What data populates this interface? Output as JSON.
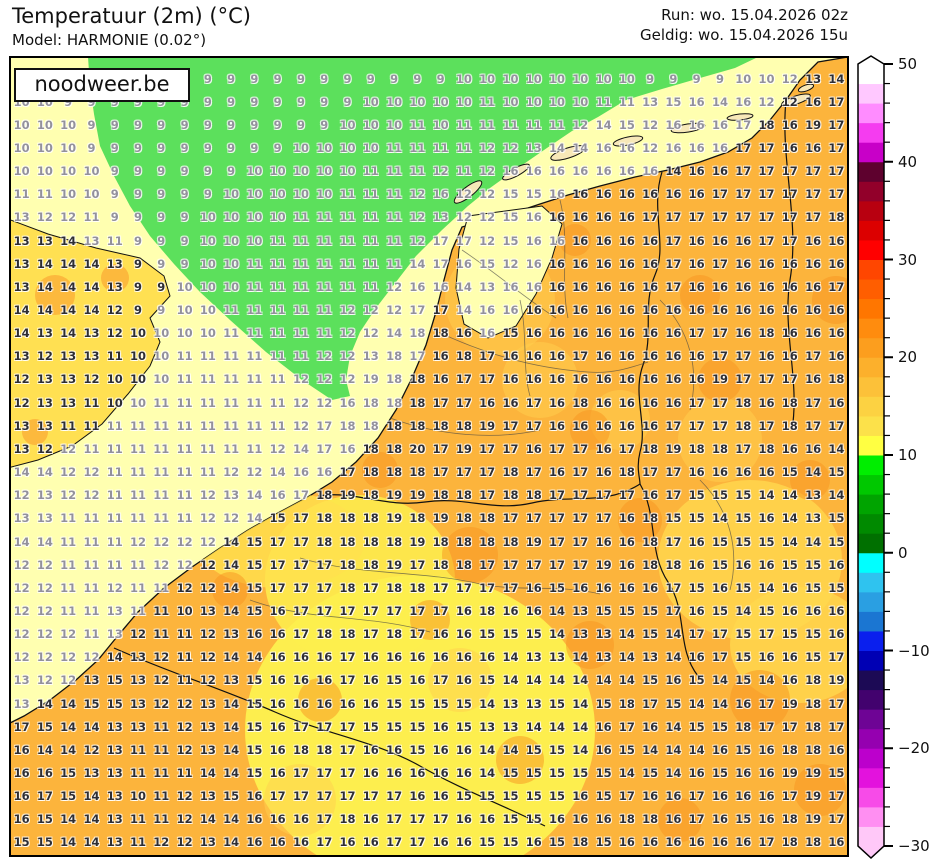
{
  "header": {
    "title": "Temperatuur (2m) (°C)",
    "model": "Model: HARMONIE (0.02°)",
    "run": "Run: wo. 15.04.2026 02z",
    "valid": "Geldig: wo. 15.04.2026 15u"
  },
  "watermark": "noodweer.be",
  "map_colors": {
    "sea_pale": "#ffffb0",
    "sea_green": "#5ce05c",
    "land_orange": "#fcb43c",
    "england_yellow": "#ffe052",
    "france_yellow": "#fdee4e",
    "island_sand": "#f7e8b8",
    "border_line": "#111111"
  },
  "chart_data": {
    "type": "heatmap",
    "title": "Temperatuur (2m) (°C)",
    "model": "HARMONIE (0.02°)",
    "run": "wo. 15.04.2026 02z",
    "valid": "wo. 15.04.2026 15u",
    "unit": "°C",
    "grid_rows": 34,
    "grid_cols": 36,
    "masked_cell_token": ".",
    "values": [
      ". . . . . . . 9 9 9 9 9 9 9 9 9 9 9 9 10 10 10 10 10 10 10 10 9 9 9 9 10 10 12 13 14",
      "10 10 9 9 9 9 9 9 9 9 9 9 9 9 9 10 10 10 10 10 11 10 10 10 10 11 11 13 15 16 14 16 12 12 16 17",
      "10 10 10 9 9 9 9 9 9 9 9 9 9 9 10 10 10 11 10 11 11 11 11 11 12 14 15 12 16 16 16 17 18 16 19 17",
      "10 10 10 9 9 9 9 9 9 9 9 9 10 10 10 10 11 11 11 11 12 12 13 14 14 16 16 12 16 16 16 17 17 16 16 17",
      "10 10 10 10 9 9 9 9 9 9 10 10 10 10 10 11 11 11 12 11 12 16 16 16 16 16 16 16 14 16 16 17 17 17 17 17",
      "11 11 10 10 9 9 9 9 9 10 10 10 10 10 11 11 11 12 16 12 12 15 15 16 16 16 16 16 16 16 17 17 17 17 17 17",
      "13 12 12 11 9 9 9 9 10 10 10 10 11 11 11 11 11 12 13 12 12 15 16 16 16 16 16 17 17 17 17 17 17 17 17 18",
      "13 13 14 13 11 9 9 9 10 10 10 11 11 11 11 11 11 12 17 17 12 15 16 16 16 16 16 16 17 16 16 16 17 17 16 16",
      "13 14 14 14 13 9 9 9 10 10 11 11 11 11 11 11 11 14 17 16 15 12 16 16 16 16 16 16 17 16 17 16 16 16 16 16",
      "13 14 14 14 13 9 9 10 10 10 11 11 11 11 11 11 12 16 16 14 13 16 16 16 16 16 16 16 17 16 16 16 16 16 16 17",
      "14 14 14 14 12 9 9 10 10 11 11 11 11 11 12 12 12 17 17 14 16 16 16 16 16 16 16 16 16 16 16 16 16 16 16 16",
      "14 13 14 13 12 10 10 10 10 11 11 11 11 11 12 12 14 18 18 16 16 15 16 16 16 16 16 16 16 17 17 16 18 16 16 16",
      "13 12 13 13 11 10 10 11 11 11 11 11 11 12 12 13 18 17 16 18 17 16 16 16 17 16 16 16 16 16 17 17 16 16 17 16",
      "12 13 13 12 10 10 10 11 11 11 11 11 12 12 12 19 18 18 16 17 17 16 16 16 16 16 16 16 16 16 19 17 17 17 16 18",
      "12 13 13 11 10 10 11 11 11 11 11 11 12 12 16 18 18 18 17 17 16 16 17 16 18 16 16 16 16 17 17 18 16 18 17 16",
      "13 13 11 11 11 11 11 11 11 11 11 11 12 17 18 18 18 18 18 18 19 17 17 16 16 16 16 16 17 17 17 18 17 18 17 17",
      "13 12 12 11 11 11 11 11 11 11 11 12 14 17 16 18 18 20 17 19 17 17 16 17 17 16 17 18 19 18 18 17 18 16 16 14",
      "14 14 12 12 11 11 11 11 11 12 12 14 16 16 17 18 18 18 17 17 17 18 17 16 17 16 18 17 17 16 16 16 16 15 14 15",
      "12 13 12 12 11 11 11 11 12 13 14 16 17 18 19 18 19 19 18 18 17 18 18 17 17 17 17 16 17 15 15 15 14 14 13 14",
      "13 13 11 11 11 11 11 11 12 12 14 15 17 18 18 18 19 18 19 18 18 17 17 17 17 17 16 18 15 15 14 15 16 14 13 15",
      "14 14 11 11 11 12 12 12 12 14 15 17 17 18 18 18 18 19 18 18 18 18 19 17 17 16 16 18 17 16 15 15 15 14 14 15",
      "12 12 11 11 11 11 12 12 12 14 15 17 17 17 18 18 19 17 18 18 17 17 17 17 17 19 16 18 18 16 15 16 16 15 15 16",
      "12 12 11 11 12 11 11 12 12 14 15 17 17 17 18 17 18 18 17 17 17 17 16 15 16 16 16 16 17 15 16 15 14 16 15 15",
      "12 12 11 11 13 11 11 10 13 14 15 16 17 17 17 17 17 17 17 16 18 16 16 14 13 15 15 15 17 16 15 14 15 16 16 16",
      "12 12 12 11 13 12 11 11 12 13 16 16 17 18 18 17 18 17 16 16 15 15 15 14 13 13 14 15 14 17 17 15 17 15 15 16",
      "12 12 12 12 14 13 12 11 12 14 14 16 16 16 17 16 16 16 16 16 16 14 13 13 14 13 14 13 14 16 17 15 16 16 15 17",
      "13 12 12 13 15 13 12 11 12 13 15 16 16 16 17 16 15 16 17 16 15 14 14 14 14 14 14 15 16 15 14 15 14 16 18 19",
      "13 14 14 15 15 13 12 12 13 14 15 16 16 16 16 16 15 15 15 15 14 13 13 15 14 15 18 17 15 14 14 16 17 19 18 17",
      "17 15 14 14 13 13 11 12 13 14 15 16 17 17 17 15 15 15 16 15 13 13 14 14 14 16 17 16 14 15 15 18 17 17 18 17",
      "16 14 14 12 13 11 11 12 13 14 15 16 18 18 17 16 16 15 16 16 14 14 15 15 14 16 15 14 14 14 16 15 16 18 18 16",
      "16 16 15 13 13 11 11 11 14 14 15 16 17 17 17 16 16 16 16 16 14 15 15 15 15 15 14 15 14 16 15 16 16 19 19 15",
      "16 17 15 14 13 10 11 12 13 15 16 17 17 17 17 17 17 16 16 15 15 15 15 15 16 15 17 16 16 17 16 16 16 17 19 17",
      "16 15 14 14 13 11 11 12 14 14 16 16 16 17 18 16 17 17 17 16 16 15 15 16 16 16 18 18 16 17 16 15 16 18 19 17",
      "15 15 14 14 13 11 12 12 13 14 16 16 16 17 16 16 17 17 16 16 15 15 16 15 18 15 16 16 16 16 16 16 17 18 18 16"
    ],
    "colorbar": {
      "min": -30,
      "max": 50,
      "tick_step": 2,
      "labels": [
        "50",
        "40",
        "30",
        "20",
        "10",
        "0",
        "−10",
        "−20",
        "−30"
      ],
      "band_step": 2,
      "band_colors_bottom_to_top": [
        "#ffc8f8",
        "#ff8ff2",
        "#f74be8",
        "#e312dd",
        "#bc00cc",
        "#9500b0",
        "#6e0495",
        "#42026e",
        "#1c0a55",
        "#0000b4",
        "#0a1fee",
        "#1b76d2",
        "#2a9fe2",
        "#2fc3ef",
        "#00ffff",
        "#007000",
        "#008a00",
        "#00a400",
        "#00c800",
        "#00ee00",
        "#ffff42",
        "#fce14a",
        "#fcd242",
        "#fcc139",
        "#fcb02c",
        "#fc9e1e",
        "#ff8c0e",
        "#ff7600",
        "#ff5e00",
        "#ff4600",
        "#ff0000",
        "#dc0000",
        "#b80010",
        "#92002a",
        "#5e012e",
        "#c800c8",
        "#f53cf0",
        "#ff8cff",
        "#ffc8ff",
        "#ffffff"
      ]
    }
  }
}
